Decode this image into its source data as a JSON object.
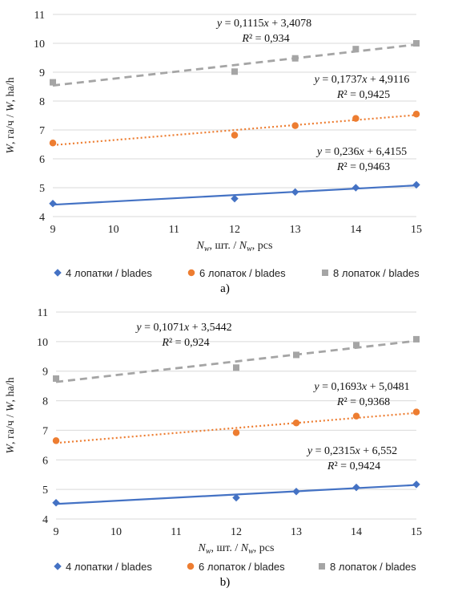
{
  "colors": {
    "series1": "#4472C4",
    "series2": "#ED7D31",
    "series3": "#A5A5A5",
    "grid": "#D9D9D9"
  },
  "chart_data": [
    {
      "type": "scatter",
      "caption": "a)",
      "xlabel": {
        "sym1": "N",
        "sub1": "w",
        "mid": ", шт. / ",
        "sym2": "N",
        "sub2": "w",
        "end": ", pcs"
      },
      "ylabel": {
        "sym1": "W",
        "mid": ", га/ч / ",
        "sym2": "W",
        "end": ", ha/h"
      },
      "xlim": [
        9,
        15
      ],
      "ylim": [
        4,
        11
      ],
      "x_ticks": [
        "9",
        "10",
        "11",
        "12",
        "13",
        "14",
        "15"
      ],
      "y_ticks": [
        "4",
        "5",
        "6",
        "7",
        "8",
        "9",
        "10",
        "11"
      ],
      "grid": "horizontal",
      "legend_position": "bottom",
      "series": [
        {
          "name": "4 лопатки / blades",
          "marker": "diamond",
          "trend": "solid",
          "x": [
            9,
            12,
            13,
            14,
            15
          ],
          "y": [
            4.45,
            4.62,
            4.85,
            5.0,
            5.1
          ],
          "trendline": {
            "slope": 0.1115,
            "intercept": 3.4078
          },
          "equation": {
            "a": "0,1115",
            "b": "3,4078",
            "r2": "0,934"
          }
        },
        {
          "name": "6 лопаток / blades",
          "marker": "circle",
          "trend": "dotted",
          "x": [
            9,
            12,
            13,
            14,
            15
          ],
          "y": [
            6.55,
            6.82,
            7.15,
            7.4,
            7.55
          ],
          "trendline": {
            "slope": 0.1737,
            "intercept": 4.9116
          },
          "equation": {
            "a": "0,1737",
            "b": "4,9116",
            "r2": "0,9425"
          }
        },
        {
          "name": "8 лопаток / blades",
          "marker": "square",
          "trend": "dashed",
          "x": [
            9,
            12,
            13,
            14,
            15
          ],
          "y": [
            8.65,
            9.02,
            9.48,
            9.8,
            10.0
          ],
          "trendline": {
            "slope": 0.236,
            "intercept": 6.4155
          },
          "equation": {
            "a": "0,236",
            "b": "6,4155",
            "r2": "0,9463"
          }
        }
      ]
    },
    {
      "type": "scatter",
      "caption": "b)",
      "xlabel": {
        "sym1": "N",
        "sub1": "w",
        "mid": ", шт. / ",
        "sym2": "N",
        "sub2": "w",
        "end": ", pcs"
      },
      "ylabel": {
        "sym1": "W",
        "mid": ", га/ч / ",
        "sym2": "W",
        "end": ", ha/h"
      },
      "xlim": [
        9,
        15
      ],
      "ylim": [
        4,
        11
      ],
      "x_ticks": [
        "9",
        "10",
        "11",
        "12",
        "13",
        "14",
        "15"
      ],
      "y_ticks": [
        "4",
        "5",
        "6",
        "7",
        "8",
        "9",
        "10",
        "11"
      ],
      "grid": "horizontal",
      "legend_position": "bottom",
      "series": [
        {
          "name": "4 лопатки / blades",
          "marker": "diamond",
          "trend": "solid",
          "x": [
            9,
            12,
            13,
            14,
            15
          ],
          "y": [
            4.55,
            4.72,
            4.93,
            5.07,
            5.17
          ],
          "trendline": {
            "slope": 0.1071,
            "intercept": 3.5442
          },
          "equation": {
            "a": "0,1071",
            "b": "3,5442",
            "r2": "0,924"
          }
        },
        {
          "name": "6 лопаток / blades",
          "marker": "circle",
          "trend": "dotted",
          "x": [
            9,
            12,
            13,
            14,
            15
          ],
          "y": [
            6.65,
            6.92,
            7.25,
            7.48,
            7.62
          ],
          "trendline": {
            "slope": 0.1693,
            "intercept": 5.0481
          },
          "equation": {
            "a": "0,1693",
            "b": "5,0481",
            "r2": "0,9368"
          }
        },
        {
          "name": "8 лопаток / blades",
          "marker": "square",
          "trend": "dashed",
          "x": [
            9,
            12,
            13,
            14,
            15
          ],
          "y": [
            8.75,
            9.12,
            9.55,
            9.88,
            10.08
          ],
          "trendline": {
            "slope": 0.2315,
            "intercept": 6.552
          },
          "equation": {
            "a": "0,2315",
            "b": "6,552",
            "r2": "0,9424"
          }
        }
      ]
    }
  ]
}
